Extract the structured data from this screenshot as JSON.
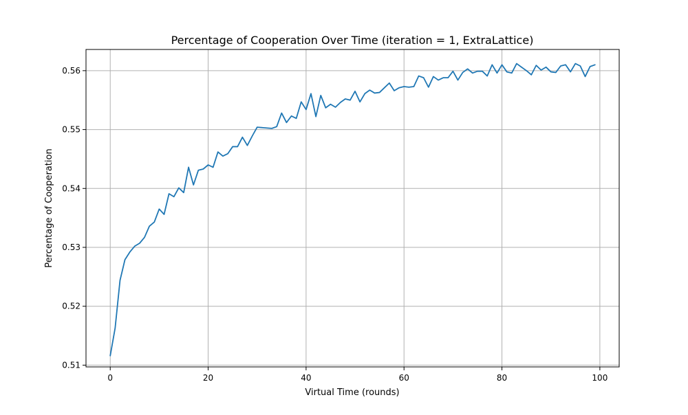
{
  "chart_data": {
    "type": "line",
    "title": "Percentage of Cooperation Over Time (iteration = 1, ExtraLattice)",
    "xlabel": "Virtual Time (rounds)",
    "ylabel": "Percentage of Cooperation",
    "xlim": [
      -4.95,
      103.95
    ],
    "ylim": [
      0.5097,
      0.5636
    ],
    "x_ticks": [
      0,
      20,
      40,
      60,
      80,
      100
    ],
    "y_ticks": [
      0.51,
      0.52,
      0.53,
      0.54,
      0.55,
      0.56
    ],
    "x_tick_labels": [
      "0",
      "20",
      "40",
      "60",
      "80",
      "100"
    ],
    "y_tick_labels": [
      "0.51",
      "0.52",
      "0.53",
      "0.54",
      "0.55",
      "0.56"
    ],
    "grid": true,
    "legend": "none",
    "line_color": "#1f77b4",
    "series": [
      {
        "x": [
          0,
          1,
          2,
          3,
          4,
          5,
          6,
          7,
          8,
          9,
          10,
          11,
          12,
          13,
          14,
          15,
          16,
          17,
          18,
          19,
          20,
          21,
          22,
          23,
          24,
          25,
          26,
          27,
          28,
          29,
          30,
          33,
          34,
          35,
          36,
          37,
          38,
          39,
          40,
          41,
          42,
          43,
          44,
          45,
          46,
          47,
          48,
          49,
          50,
          51,
          52,
          53,
          54,
          55,
          56,
          57,
          58,
          59,
          60,
          61,
          62,
          63,
          64,
          65,
          66,
          67,
          68,
          69,
          70,
          71,
          72,
          73,
          74,
          75,
          76,
          77,
          78,
          79,
          80,
          81,
          82,
          83,
          84,
          85,
          86,
          87,
          88,
          89,
          90,
          91,
          92,
          93,
          94,
          95,
          96,
          97,
          98,
          99
        ],
        "y": [
          0.5116,
          0.5163,
          0.5244,
          0.5279,
          0.5292,
          0.5302,
          0.5307,
          0.5317,
          0.5336,
          0.5343,
          0.5365,
          0.5356,
          0.5391,
          0.5386,
          0.5401,
          0.5393,
          0.5436,
          0.5406,
          0.5431,
          0.5433,
          0.544,
          0.5436,
          0.5462,
          0.5455,
          0.5459,
          0.5471,
          0.5471,
          0.5487,
          0.5473,
          0.5489,
          0.5504,
          0.5502,
          0.5505,
          0.5528,
          0.5512,
          0.5523,
          0.5519,
          0.5547,
          0.5534,
          0.5561,
          0.5522,
          0.5558,
          0.5537,
          0.5543,
          0.5538,
          0.5546,
          0.5552,
          0.555,
          0.5565,
          0.5547,
          0.5561,
          0.5567,
          0.5562,
          0.5563,
          0.5571,
          0.5579,
          0.5566,
          0.5571,
          0.5573,
          0.5572,
          0.5573,
          0.5591,
          0.5588,
          0.5572,
          0.559,
          0.5584,
          0.5588,
          0.5588,
          0.5599,
          0.5584,
          0.5597,
          0.5603,
          0.5596,
          0.5599,
          0.5599,
          0.5591,
          0.561,
          0.5596,
          0.561,
          0.5598,
          0.5596,
          0.5612,
          0.5606,
          0.56,
          0.5593,
          0.5609,
          0.5601,
          0.5606,
          0.5598,
          0.5597,
          0.5608,
          0.561,
          0.5598,
          0.5612,
          0.5608,
          0.559,
          0.5607,
          0.561
        ]
      }
    ]
  }
}
